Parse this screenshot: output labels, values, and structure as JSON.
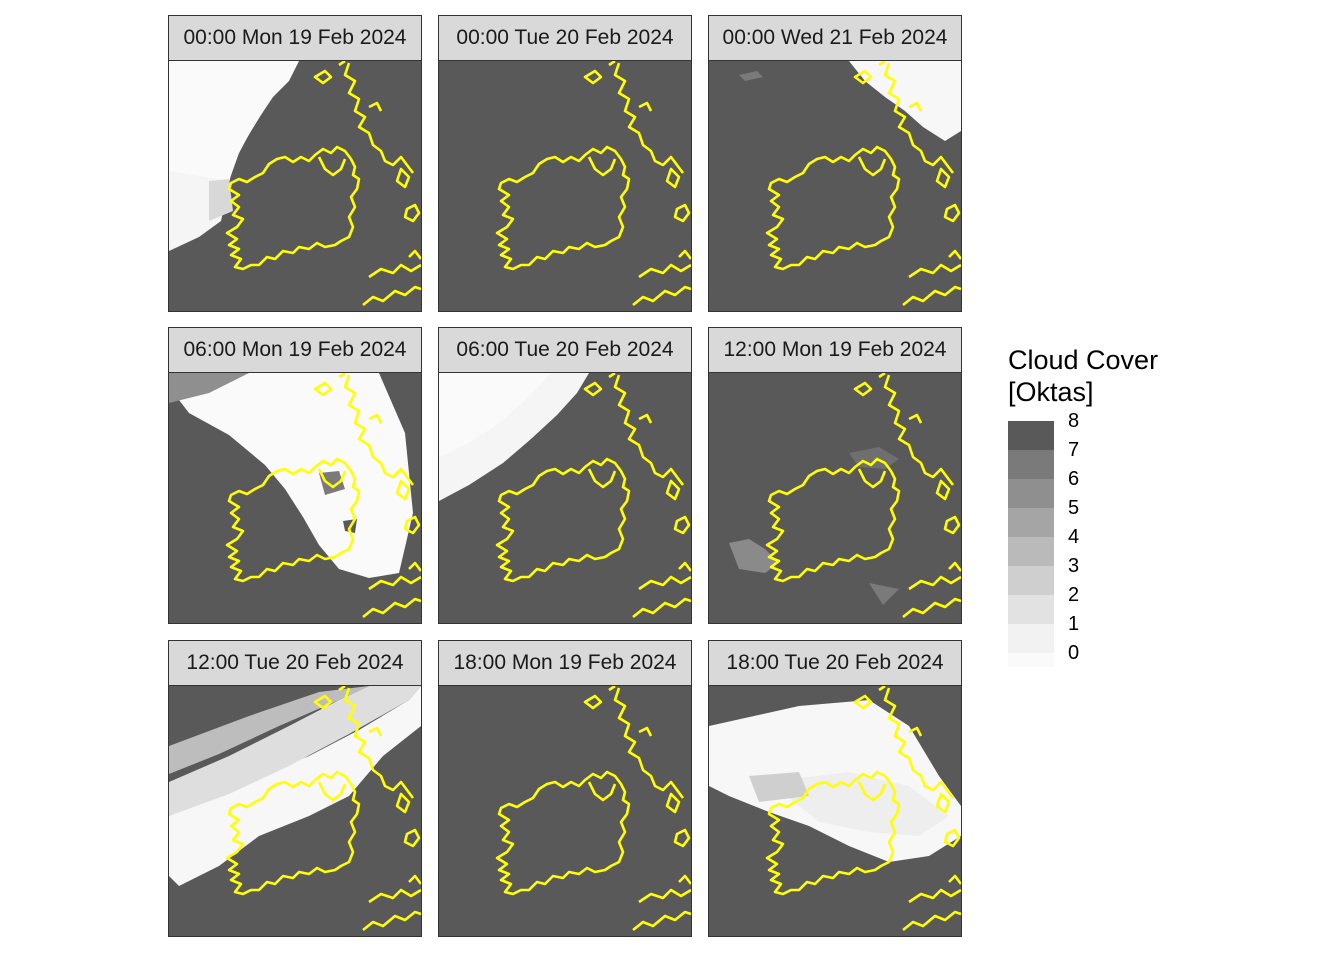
{
  "panels": [
    {
      "label": "00:00 Mon 19 Feb 2024",
      "clouds": "west-clear"
    },
    {
      "label": "00:00 Tue 20 Feb 2024",
      "clouds": "overcast"
    },
    {
      "label": "00:00 Wed 21 Feb 2024",
      "clouds": "northeast-clear"
    },
    {
      "label": "06:00 Mon 19 Feb 2024",
      "clouds": "band-clear"
    },
    {
      "label": "06:00 Tue 20 Feb 2024",
      "clouds": "northwest-clear"
    },
    {
      "label": "12:00 Mon 19 Feb 2024",
      "clouds": "mostly-overcast"
    },
    {
      "label": "12:00 Tue 20 Feb 2024",
      "clouds": "diagonal-clear"
    },
    {
      "label": "18:00 Mon 19 Feb 2024",
      "clouds": "overcast"
    },
    {
      "label": "18:00 Tue 20 Feb 2024",
      "clouds": "central-clear"
    }
  ],
  "legend": {
    "title_line1": "Cloud Cover",
    "title_line2": "[Oktas]",
    "levels": [
      "8",
      "7",
      "6",
      "5",
      "4",
      "3",
      "2",
      "1",
      "0"
    ],
    "colors": [
      "#595959",
      "#7a7a7a",
      "#8f8f8f",
      "#a5a5a5",
      "#bababa",
      "#cfcfcf",
      "#e2e2e2",
      "#f2f2f2",
      "#fafafa"
    ]
  },
  "colors": {
    "coastline": "#ffff00",
    "background": "#595959",
    "strip": "#d9d9d9"
  }
}
